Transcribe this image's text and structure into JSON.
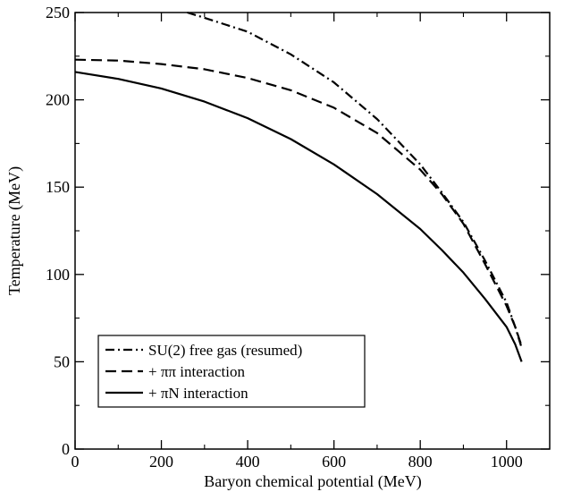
{
  "chart_data": {
    "type": "line",
    "title": "",
    "xlabel": "Baryon chemical potential (MeV)",
    "ylabel": "Temperature (MeV)",
    "xlim": [
      0,
      1100
    ],
    "ylim": [
      0,
      250
    ],
    "x_ticks": [
      0,
      200,
      400,
      600,
      800,
      1000
    ],
    "y_ticks": [
      0,
      50,
      100,
      150,
      200,
      250
    ],
    "grid": false,
    "legend_position": "bottom-left",
    "series": [
      {
        "name": "SU(2) free gas (resumed)",
        "style": "dash-dot",
        "color": "#000000",
        "points": [
          [
            260,
            250
          ],
          [
            300,
            247
          ],
          [
            400,
            239
          ],
          [
            500,
            226
          ],
          [
            600,
            210
          ],
          [
            700,
            189
          ],
          [
            800,
            163
          ],
          [
            850,
            147
          ],
          [
            900,
            130
          ],
          [
            950,
            108
          ],
          [
            1000,
            84
          ],
          [
            1020,
            70
          ],
          [
            1035,
            58
          ]
        ]
      },
      {
        "name": "+ ππ interaction",
        "style": "dashed",
        "color": "#000000",
        "points": [
          [
            0,
            223
          ],
          [
            100,
            222.5
          ],
          [
            200,
            220.5
          ],
          [
            300,
            217.5
          ],
          [
            400,
            212.5
          ],
          [
            500,
            205.5
          ],
          [
            600,
            195.5
          ],
          [
            700,
            181
          ],
          [
            800,
            160
          ],
          [
            850,
            146
          ],
          [
            900,
            129
          ],
          [
            950,
            106
          ],
          [
            1000,
            82
          ],
          [
            1020,
            70
          ],
          [
            1035,
            59
          ]
        ]
      },
      {
        "name": "+ πN interaction",
        "style": "solid",
        "color": "#000000",
        "points": [
          [
            0,
            216
          ],
          [
            100,
            212
          ],
          [
            200,
            206.5
          ],
          [
            300,
            199
          ],
          [
            400,
            189.5
          ],
          [
            500,
            177.5
          ],
          [
            600,
            163
          ],
          [
            700,
            146
          ],
          [
            800,
            126
          ],
          [
            850,
            114
          ],
          [
            900,
            101
          ],
          [
            950,
            86
          ],
          [
            1000,
            70
          ],
          [
            1020,
            60
          ],
          [
            1035,
            50
          ]
        ]
      }
    ]
  }
}
